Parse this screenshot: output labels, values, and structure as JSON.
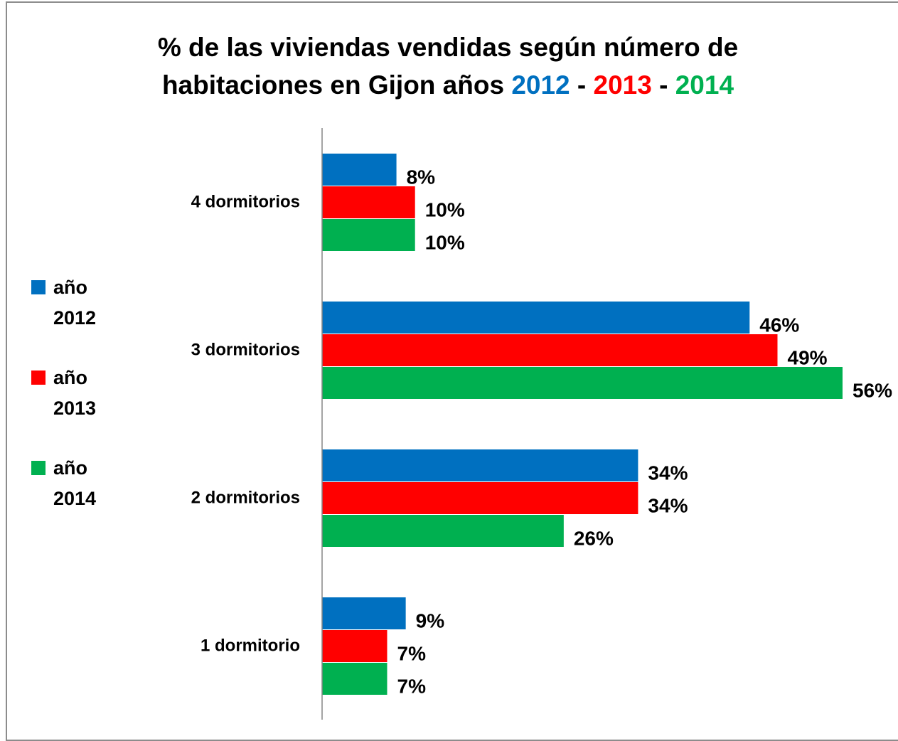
{
  "chart_data": {
    "type": "hbar",
    "title": [
      {
        "text": "% de las viviendas vendidas según número de habitaciones en Gijon años",
        "color": "#000000"
      },
      {
        "text": "2012",
        "color": "#0070c0"
      },
      {
        "text": "-",
        "color": "#000000"
      },
      {
        "text": "2013",
        "color": "#ff0000"
      },
      {
        "text": "-",
        "color": "#000000"
      },
      {
        "text": "2014",
        "color": "#00b050"
      }
    ],
    "categories": [
      "4 dormitorios",
      "3 dormitorios",
      "2 dormitorios",
      "1 dormitorio"
    ],
    "series": [
      {
        "name": "año 2012",
        "color": "#0070c0",
        "values": [
          8,
          46,
          34,
          9
        ],
        "value_labels": [
          "8%",
          "46%",
          "34%",
          "9%"
        ]
      },
      {
        "name": "año 2013",
        "color": "#ff0000",
        "values": [
          10,
          49,
          34,
          7
        ],
        "value_labels": [
          "10%",
          "49%",
          "34%",
          "7%"
        ]
      },
      {
        "name": "año 2014",
        "color": "#00b050",
        "values": [
          10,
          56,
          26,
          7
        ],
        "value_labels": [
          "10%",
          "56%",
          "26%",
          "7%"
        ]
      }
    ],
    "legend": "left"
  }
}
